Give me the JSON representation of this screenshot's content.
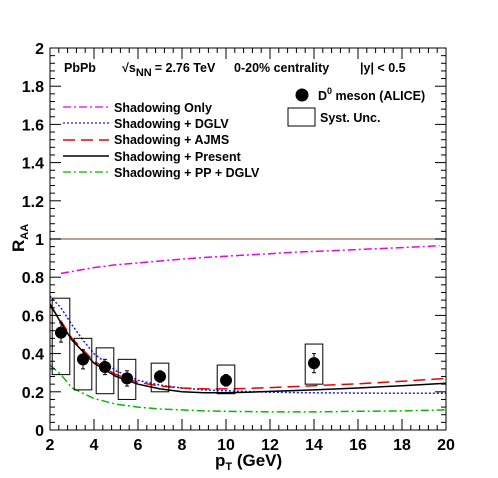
{
  "chart_data": {
    "type": "line",
    "header": {
      "system": "PbPb",
      "energy_sqrt": "√",
      "energy_s": "s",
      "energy_sub": "NN",
      "energy_value": "= 2.76 TeV",
      "centrality": "0-20% centrality",
      "rapidity": "|y| < 0.5"
    },
    "xlabel": {
      "main": "p",
      "sub": "T",
      "unit": " (GeV)"
    },
    "ylabel": {
      "main": "R",
      "sub": "AA"
    },
    "xlim": [
      2,
      20
    ],
    "ylim": [
      0,
      2
    ],
    "x_ticks": [
      {
        "value": 2,
        "label": "2"
      },
      {
        "value": 4,
        "label": "4"
      },
      {
        "value": 6,
        "label": "6"
      },
      {
        "value": 8,
        "label": "8"
      },
      {
        "value": 10,
        "label": "10"
      },
      {
        "value": 12,
        "label": "12"
      },
      {
        "value": 14,
        "label": "14"
      },
      {
        "value": 16,
        "label": "16"
      },
      {
        "value": 18,
        "label": "18"
      },
      {
        "value": 20,
        "label": "20"
      }
    ],
    "y_ticks": [
      {
        "value": 0,
        "label": "0"
      },
      {
        "value": 0.2,
        "label": "0.2"
      },
      {
        "value": 0.4,
        "label": "0.4"
      },
      {
        "value": 0.6,
        "label": "0.6"
      },
      {
        "value": 0.8,
        "label": "0.8"
      },
      {
        "value": 1,
        "label": "1"
      },
      {
        "value": 1.2,
        "label": "1.2"
      },
      {
        "value": 1.4,
        "label": "1.4"
      },
      {
        "value": 1.6,
        "label": "1.6"
      },
      {
        "value": 1.8,
        "label": "1.8"
      },
      {
        "value": 2,
        "label": "2"
      }
    ],
    "reference_line": {
      "y": 1,
      "color": "#a08070"
    },
    "series": [
      {
        "name": "Shadowing Only",
        "color": "#ee00ee",
        "dash": "dash-dot",
        "x": [
          2.5,
          3,
          4,
          5,
          6,
          7,
          8,
          9,
          10,
          11,
          12,
          13,
          14,
          15,
          16,
          17,
          18,
          19,
          19.7
        ],
        "y": [
          0.82,
          0.83,
          0.85,
          0.865,
          0.875,
          0.885,
          0.895,
          0.903,
          0.91,
          0.917,
          0.923,
          0.93,
          0.935,
          0.94,
          0.945,
          0.95,
          0.955,
          0.96,
          0.965
        ]
      },
      {
        "name": "Shadowing + DGLV",
        "color": "#1a1aff",
        "dash": "dotted",
        "x": [
          2,
          2.5,
          3,
          3.5,
          4,
          5,
          6,
          7,
          8,
          9,
          10,
          12,
          14,
          16,
          18,
          20
        ],
        "y": [
          0.7,
          0.64,
          0.55,
          0.47,
          0.4,
          0.31,
          0.26,
          0.235,
          0.22,
          0.21,
          0.205,
          0.198,
          0.195,
          0.193,
          0.192,
          0.192
        ]
      },
      {
        "name": "Shadowing + AJMS",
        "color": "#ee0000",
        "dash": "long-dash",
        "x": [
          2,
          2.5,
          3,
          4,
          5,
          6,
          7,
          8,
          9,
          10,
          11,
          12,
          14,
          16,
          18,
          20
        ],
        "y": [
          0.65,
          0.57,
          0.48,
          0.36,
          0.29,
          0.25,
          0.23,
          0.22,
          0.215,
          0.215,
          0.218,
          0.222,
          0.232,
          0.242,
          0.255,
          0.27
        ]
      },
      {
        "name": "Shadowing + Present",
        "color": "#000000",
        "dash": "solid",
        "x": [
          2,
          2.5,
          3,
          4,
          5,
          6,
          7,
          8,
          9,
          10,
          11,
          12,
          14,
          16,
          18,
          20
        ],
        "y": [
          0.66,
          0.56,
          0.47,
          0.35,
          0.28,
          0.24,
          0.215,
          0.2,
          0.195,
          0.195,
          0.198,
          0.202,
          0.21,
          0.22,
          0.232,
          0.245
        ]
      },
      {
        "name": "Shadowing + PP + DGLV",
        "color": "#00bb00",
        "dash": "dash-dot",
        "x": [
          2,
          2.5,
          3,
          4,
          5,
          6,
          7,
          8,
          9,
          10,
          12,
          14,
          16,
          18,
          20
        ],
        "y": [
          0.34,
          0.29,
          0.22,
          0.165,
          0.135,
          0.12,
          0.11,
          0.105,
          0.1,
          0.098,
          0.095,
          0.095,
          0.098,
          0.1,
          0.105
        ]
      }
    ],
    "data_points": {
      "name": "D",
      "name_sup": "0",
      "name_rest": " meson  (ALICE)",
      "x": [
        2.5,
        3.5,
        4.5,
        5.5,
        7,
        10,
        14
      ],
      "y": [
        0.51,
        0.37,
        0.33,
        0.27,
        0.28,
        0.26,
        0.35
      ],
      "stat_err": [
        0.05,
        0.05,
        0.04,
        0.04,
        0.03,
        0.03,
        0.05
      ]
    },
    "syst_boxes": {
      "name": "Syst. Unc.",
      "x": [
        2.5,
        3.5,
        4.5,
        5.5,
        7,
        10,
        14
      ],
      "low": [
        0.29,
        0.21,
        0.19,
        0.16,
        0.2,
        0.19,
        0.24
      ],
      "high": [
        0.69,
        0.48,
        0.43,
        0.37,
        0.35,
        0.34,
        0.45
      ]
    }
  }
}
